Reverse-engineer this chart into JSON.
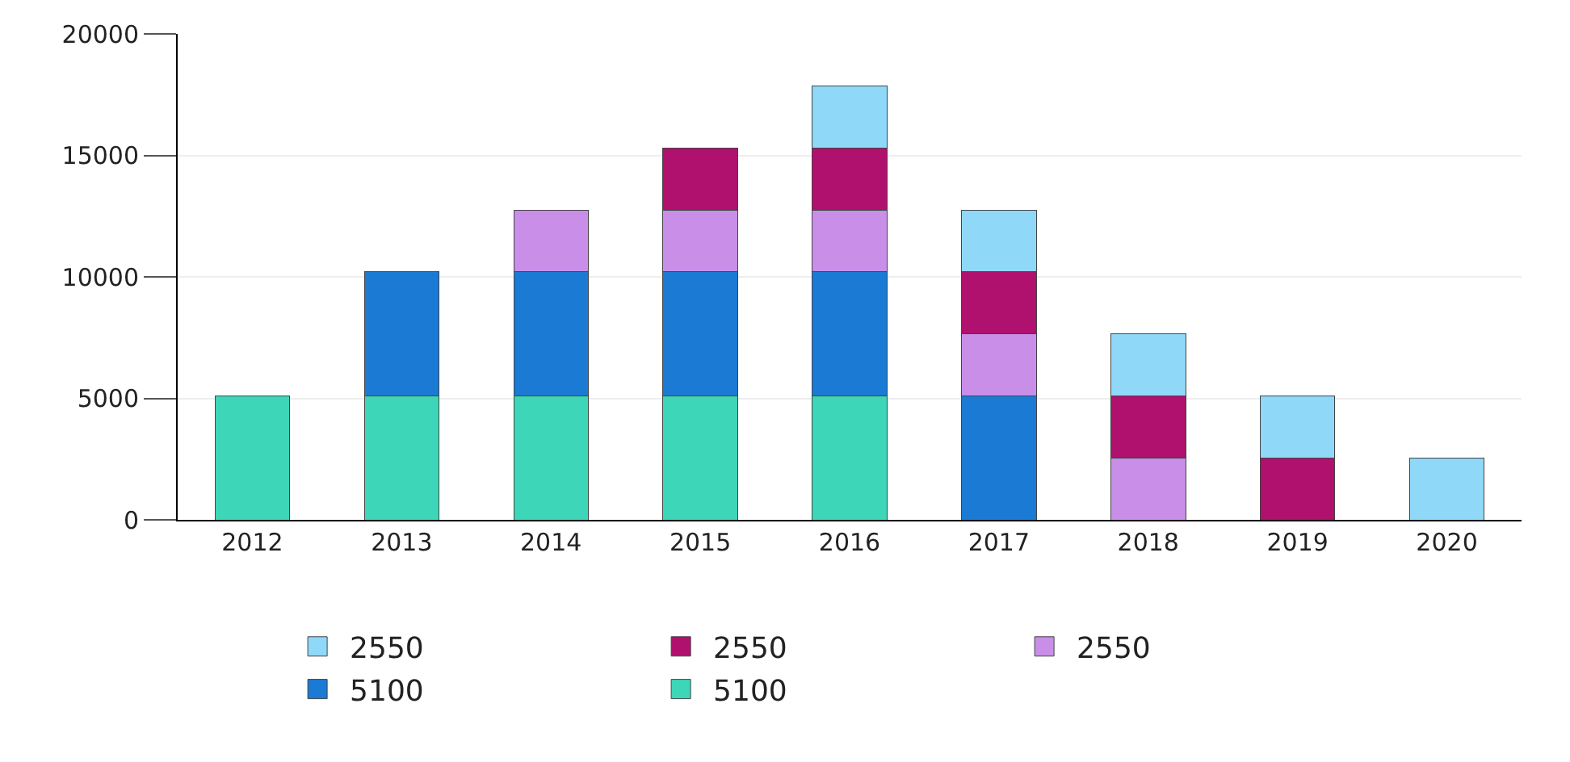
{
  "chart_data": {
    "type": "bar",
    "stacked": true,
    "categories": [
      "2012",
      "2013",
      "2014",
      "2015",
      "2016",
      "2017",
      "2018",
      "2019",
      "2020"
    ],
    "series": [
      {
        "name": "5100",
        "color": "#3dd6b8",
        "values": [
          5100,
          5100,
          5100,
          5100,
          5100,
          null,
          null,
          null,
          null
        ]
      },
      {
        "name": "5100",
        "color": "#1a7ad4",
        "values": [
          null,
          5100,
          5100,
          5100,
          5100,
          5100,
          null,
          null,
          null
        ]
      },
      {
        "name": "2550",
        "color": "#c98ee8",
        "values": [
          null,
          null,
          2550,
          2550,
          2550,
          2550,
          2550,
          null,
          null
        ]
      },
      {
        "name": "2550",
        "color": "#b0106e",
        "values": [
          null,
          null,
          null,
          2550,
          2550,
          2550,
          2550,
          2550,
          null
        ]
      },
      {
        "name": "2550",
        "color": "#8fd8f8",
        "values": [
          null,
          null,
          null,
          null,
          2550,
          2550,
          2550,
          2550,
          2550
        ]
      }
    ],
    "ylim": [
      0,
      20000
    ],
    "yticks": [
      0,
      5000,
      10000,
      15000,
      20000
    ],
    "grid": "y",
    "legend": "bottom"
  }
}
